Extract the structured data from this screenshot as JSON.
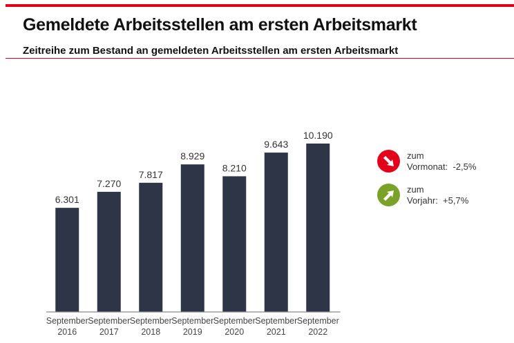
{
  "header": {
    "title": "Gemeldete Arbeitsstellen am ersten Arbeitsmarkt",
    "subtitle": "Zeitreihe zum Bestand an gemeldeten Arbeitsstellen am ersten Arbeitsmarkt"
  },
  "colors": {
    "accent": "#e2001a",
    "bar": "#2e3546",
    "down": "#e2001a",
    "up": "#7aa228"
  },
  "chart_data": {
    "type": "bar",
    "categories": [
      [
        "September",
        "2016"
      ],
      [
        "September",
        "2017"
      ],
      [
        "September",
        "2018"
      ],
      [
        "September",
        "2019"
      ],
      [
        "September",
        "2020"
      ],
      [
        "September",
        "2021"
      ],
      [
        "September",
        "2022"
      ]
    ],
    "values": [
      6301,
      7270,
      7817,
      8929,
      8210,
      9643,
      10190
    ],
    "labels": [
      "6.301",
      "7.270",
      "7.817",
      "8.929",
      "8.210",
      "9.643",
      "10.190"
    ],
    "title": "",
    "xlabel": "",
    "ylabel": "",
    "ylim": [
      0,
      10190
    ],
    "grid": false
  },
  "indicators": [
    {
      "icon": "arrow-down-right-icon",
      "line1": "zum",
      "line2": "Vormonat:  -2,5%",
      "color": "#e2001a"
    },
    {
      "icon": "arrow-up-right-icon",
      "line1": "zum",
      "line2": "Vorjahr:  +5,7%",
      "color": "#7aa228"
    }
  ]
}
